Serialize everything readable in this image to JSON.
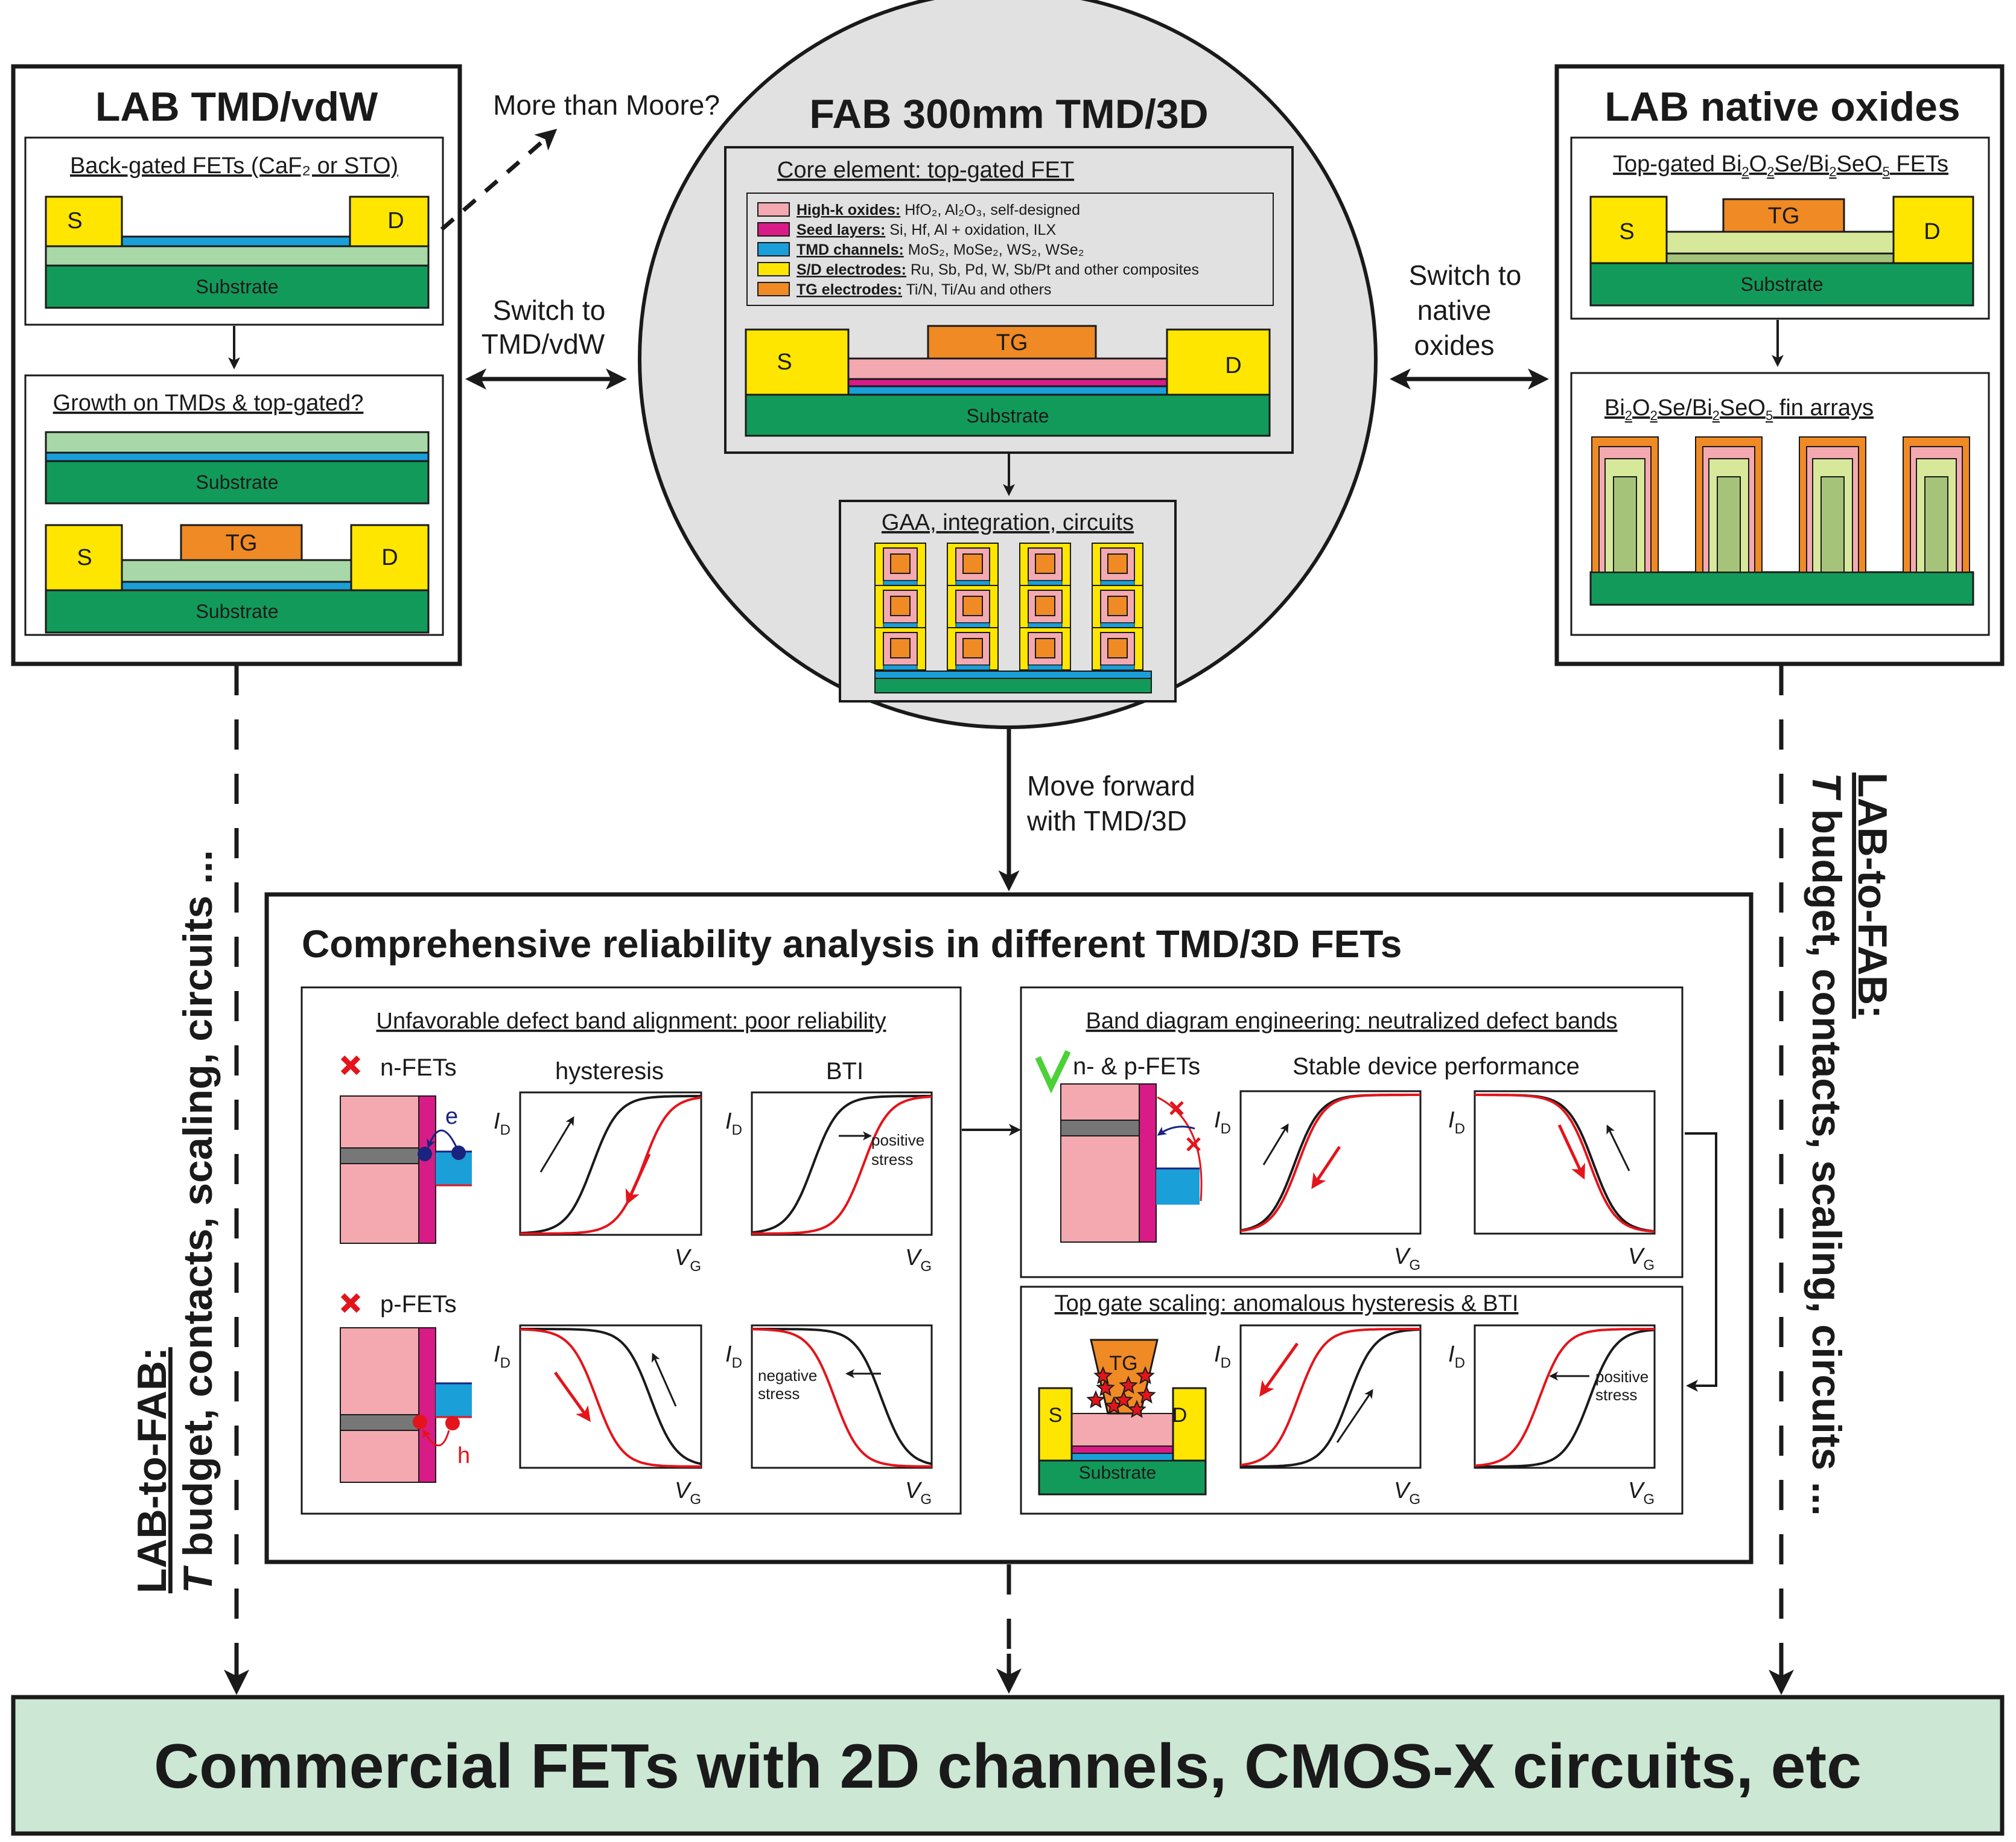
{
  "colors": {
    "substrate": "#129a5a",
    "dielectric": "#a8d8a8",
    "channel": "#1a9fd8",
    "electrode": "#ffe600",
    "gate": "#f08a24",
    "highk": "#f4a9b0",
    "seed": "#d81b87",
    "oxide_light": "#d7e89a",
    "oxide_native": "#a5c47a",
    "fab_bg": "#e1e1e1",
    "bottom_bg": "#cce7d4",
    "red": "#e4141b",
    "green": "#4cd137",
    "blue": "#1a237e"
  },
  "left_panel": {
    "title": "LAB TMD/vdW",
    "box1": {
      "title": "Back-gated FETs (CaF₂ or STO)",
      "source": "S",
      "drain": "D",
      "substrate": "Substrate"
    },
    "box2": {
      "title": "Growth on TMDs & top-gated?",
      "substrate_top": "Substrate",
      "source": "S",
      "gate": "TG",
      "drain": "D",
      "substrate": "Substrate"
    }
  },
  "right_panel": {
    "title": "LAB native oxides",
    "box1": {
      "title_a": "Top-gated Bi",
      "title_b": "2",
      "title_c": "O",
      "title_d": "2",
      "title_e": "Se/Bi",
      "title_f": "2",
      "title_g": "SeO",
      "title_h": "5",
      "title_i": " FETs",
      "source": "S",
      "gate": "TG",
      "drain": "D",
      "substrate": "Substrate"
    },
    "box2": {
      "title_a": "Bi",
      "title_b": "2",
      "title_c": "O",
      "title_d": "2",
      "title_e": "Se/Bi",
      "title_f": "2",
      "title_g": "SeO",
      "title_h": "5",
      "title_i": " fin arrays"
    }
  },
  "center": {
    "title": "FAB 300mm TMD/3D",
    "core_title": "Core element: top-gated FET",
    "legend": [
      {
        "label": "High-k oxides:",
        "desc": "HfO₂, Al₂O₃, self-designed",
        "color": "#f4a9b0"
      },
      {
        "label": "Seed layers:",
        "desc": "Si, Hf, Al + oxidation, ILX",
        "color": "#d81b87"
      },
      {
        "label": "TMD channels:",
        "desc": "MoS₂, MoSe₂, WS₂, WSe₂",
        "color": "#1a9fd8"
      },
      {
        "label": "S/D electrodes:",
        "desc": "Ru, Sb, Pd, W, Sb/Pt and other composites",
        "color": "#ffe600"
      },
      {
        "label": "TG electrodes:",
        "desc": "Ti/N, Ti/Au and others",
        "color": "#f08a24"
      }
    ],
    "fet": {
      "source": "S",
      "gate": "TG",
      "drain": "D",
      "substrate": "Substrate"
    },
    "gaa_title": "GAA, integration, circuits"
  },
  "arrows": {
    "more_than_moore": "More than Moore?",
    "switch_left_1": "Switch to",
    "switch_left_2": "TMD/vdW",
    "switch_right_1": "Switch to",
    "switch_right_2": "native",
    "switch_right_3": "oxides",
    "move_forward_1": "Move forward",
    "move_forward_2": "with TMD/3D"
  },
  "side_labels": {
    "left_1": "LAB-to-FAB:",
    "left_2": "T",
    "left_3": " budget, contacts, scaling, circuits ...",
    "right_1": "LAB-to-FAB:",
    "right_2": "T",
    "right_3": " budget, contacts, scaling, circuits ..."
  },
  "reliability": {
    "title": "Comprehensive reliability analysis in different TMD/3D FETs",
    "left_box": {
      "title": "Unfavorable defect band alignment: poor reliability",
      "n_label": "n-FETs",
      "p_label": "p-FETs",
      "col1": "hysteresis",
      "col2": "BTI",
      "electron": "e",
      "hole": "h",
      "positive_stress_1": "positive",
      "positive_stress_2": "stress",
      "negative_stress_1": "negative",
      "negative_stress_2": "stress"
    },
    "right_top": {
      "title": "Band diagram engineering: neutralized defect bands",
      "np_label": "n- & p-FETs",
      "stable": "Stable device performance"
    },
    "right_bottom": {
      "title": "Top gate scaling: anomalous hysteresis & BTI",
      "source": "S",
      "gate": "TG",
      "drain": "D",
      "substrate": "Substrate",
      "positive_stress_1": "positive",
      "positive_stress_2": "stress"
    },
    "id_i": "I",
    "id_sub": "D",
    "vg_v": "V",
    "vg_sub": "G"
  },
  "bottom": {
    "text": "Commercial FETs with 2D channels, CMOS-X circuits, etc"
  }
}
